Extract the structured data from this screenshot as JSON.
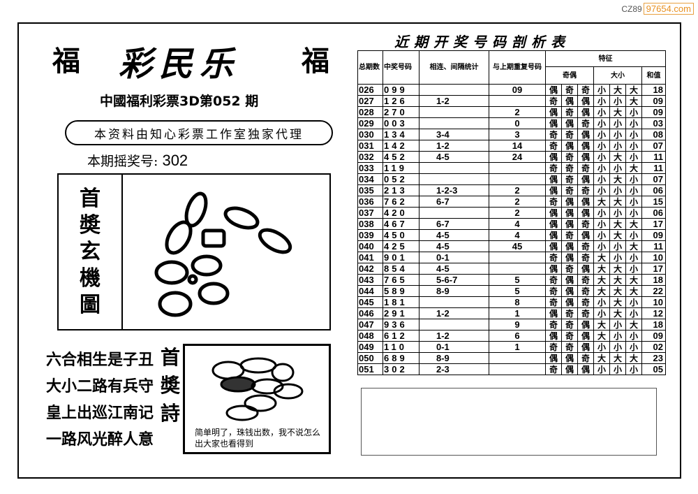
{
  "watermark": {
    "prefix": "CZ89",
    "domain": "97654.com"
  },
  "header": {
    "fu_left": "福",
    "fu_right": "福",
    "brand": "彩民乐",
    "subtitle": "中國福利彩票3D第052 期",
    "banner": "本资料由知心彩票工作室独家代理",
    "draw_label": "本期摇奖号:",
    "draw_number": "302"
  },
  "mystery": {
    "label": [
      "首",
      "奬",
      "玄",
      "機",
      "圖"
    ]
  },
  "poem": {
    "lines": [
      "六合相生是子丑",
      "大小二路有兵守",
      "皇上出巡江南记",
      "一路风光醉人意"
    ],
    "title": "首奬詩",
    "caption": "简单明了，珠钱出数，我不说怎么出大家也看得到"
  },
  "table": {
    "title": "近期开奖号码剖析表",
    "headers": {
      "period": "总期数",
      "number": "中奖号码",
      "consecutive": "相连、间隔统计",
      "repeat": "与上期重复号码",
      "features": "特征",
      "parity": "奇偶",
      "size": "大小",
      "sum": "和值"
    },
    "rows": [
      [
        "026",
        "099",
        "",
        "09",
        "偶",
        "奇",
        "奇",
        "小",
        "大",
        "大",
        "18"
      ],
      [
        "027",
        "126",
        "1-2",
        "",
        "奇",
        "偶",
        "偶",
        "小",
        "小",
        "大",
        "09"
      ],
      [
        "028",
        "270",
        "",
        "2",
        "偶",
        "奇",
        "偶",
        "小",
        "大",
        "小",
        "09"
      ],
      [
        "029",
        "003",
        "",
        "0",
        "偶",
        "偶",
        "奇",
        "小",
        "小",
        "小",
        "03"
      ],
      [
        "030",
        "134",
        "3-4",
        "3",
        "奇",
        "奇",
        "偶",
        "小",
        "小",
        "小",
        "08"
      ],
      [
        "031",
        "142",
        "1-2",
        "14",
        "奇",
        "偶",
        "偶",
        "小",
        "小",
        "小",
        "07"
      ],
      [
        "032",
        "452",
        "4-5",
        "24",
        "偶",
        "奇",
        "偶",
        "小",
        "大",
        "小",
        "11"
      ],
      [
        "033",
        "119",
        "",
        "",
        "奇",
        "奇",
        "奇",
        "小",
        "小",
        "大",
        "11"
      ],
      [
        "034",
        "052",
        "",
        "",
        "偶",
        "奇",
        "偶",
        "小",
        "大",
        "小",
        "07"
      ],
      [
        "035",
        "213",
        "1-2-3",
        "2",
        "偶",
        "奇",
        "奇",
        "小",
        "小",
        "小",
        "06"
      ],
      [
        "036",
        "762",
        "6-7",
        "2",
        "奇",
        "偶",
        "偶",
        "大",
        "大",
        "小",
        "15"
      ],
      [
        "037",
        "420",
        "",
        "2",
        "偶",
        "偶",
        "偶",
        "小",
        "小",
        "小",
        "06"
      ],
      [
        "038",
        "467",
        "6-7",
        "4",
        "偶",
        "偶",
        "奇",
        "小",
        "大",
        "大",
        "17"
      ],
      [
        "039",
        "450",
        "4-5",
        "4",
        "偶",
        "奇",
        "偶",
        "小",
        "大",
        "小",
        "09"
      ],
      [
        "040",
        "425",
        "4-5",
        "45",
        "偶",
        "偶",
        "奇",
        "小",
        "小",
        "大",
        "11"
      ],
      [
        "041",
        "901",
        "0-1",
        "",
        "奇",
        "偶",
        "奇",
        "大",
        "小",
        "小",
        "10"
      ],
      [
        "042",
        "854",
        "4-5",
        "",
        "偶",
        "奇",
        "偶",
        "大",
        "大",
        "小",
        "17"
      ],
      [
        "043",
        "765",
        "5-6-7",
        "5",
        "奇",
        "偶",
        "奇",
        "大",
        "大",
        "大",
        "18"
      ],
      [
        "044",
        "589",
        "8-9",
        "5",
        "奇",
        "偶",
        "奇",
        "大",
        "大",
        "大",
        "22"
      ],
      [
        "045",
        "181",
        "",
        "8",
        "奇",
        "偶",
        "奇",
        "小",
        "大",
        "小",
        "10"
      ],
      [
        "046",
        "291",
        "1-2",
        "1",
        "偶",
        "奇",
        "奇",
        "小",
        "大",
        "小",
        "12"
      ],
      [
        "047",
        "936",
        "",
        "9",
        "奇",
        "奇",
        "偶",
        "大",
        "小",
        "大",
        "18"
      ],
      [
        "048",
        "612",
        "1-2",
        "6",
        "偶",
        "奇",
        "偶",
        "大",
        "小",
        "小",
        "09"
      ],
      [
        "049",
        "110",
        "0-1",
        "1",
        "奇",
        "奇",
        "偶",
        "小",
        "小",
        "小",
        "02"
      ],
      [
        "050",
        "689",
        "8-9",
        "",
        "偶",
        "偶",
        "奇",
        "大",
        "大",
        "大",
        "23"
      ],
      [
        "051",
        "302",
        "2-3",
        "",
        "奇",
        "偶",
        "偶",
        "小",
        "小",
        "小",
        "05"
      ]
    ]
  }
}
